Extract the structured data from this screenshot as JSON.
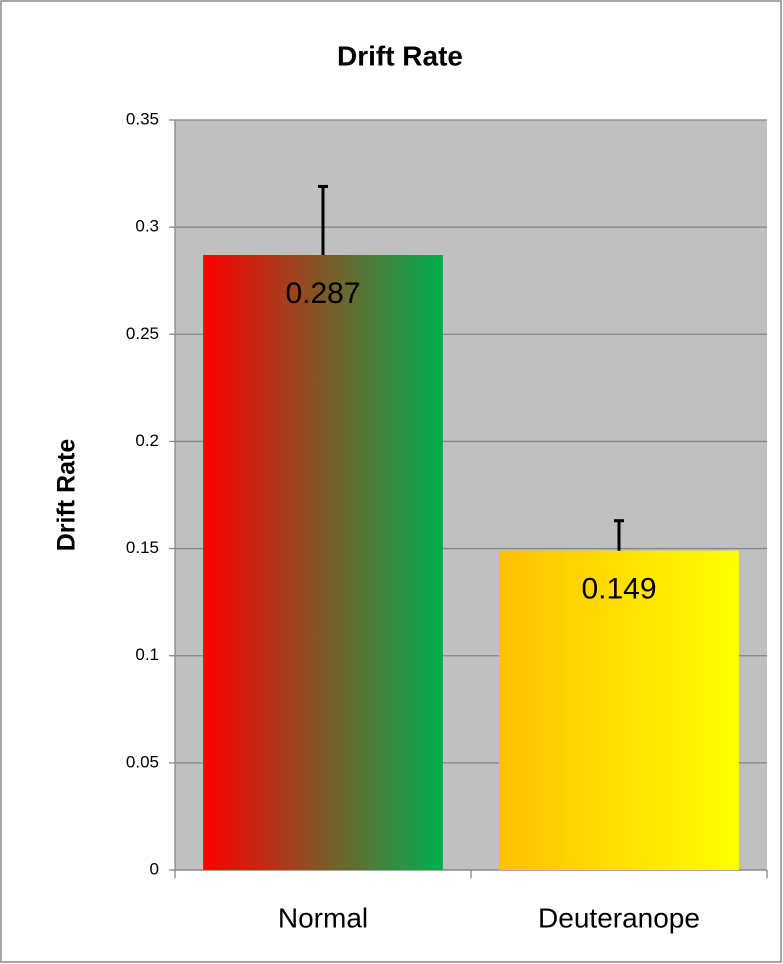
{
  "chart_data": {
    "type": "bar",
    "title": "Drift Rate",
    "y_label": "Drift Rate",
    "categories": [
      "Normal",
      "Deuteranope"
    ],
    "values": [
      0.287,
      0.149
    ],
    "errors": [
      0.032,
      0.014
    ],
    "gradients": [
      [
        "#ff0000",
        "#00b050"
      ],
      [
        "#ffc000",
        "#ffff00"
      ]
    ],
    "ylim": [
      0,
      0.35
    ],
    "yticks": [
      0,
      0.05,
      0.1,
      0.15,
      0.2,
      0.25,
      0.3,
      0.35
    ],
    "grid": true
  }
}
